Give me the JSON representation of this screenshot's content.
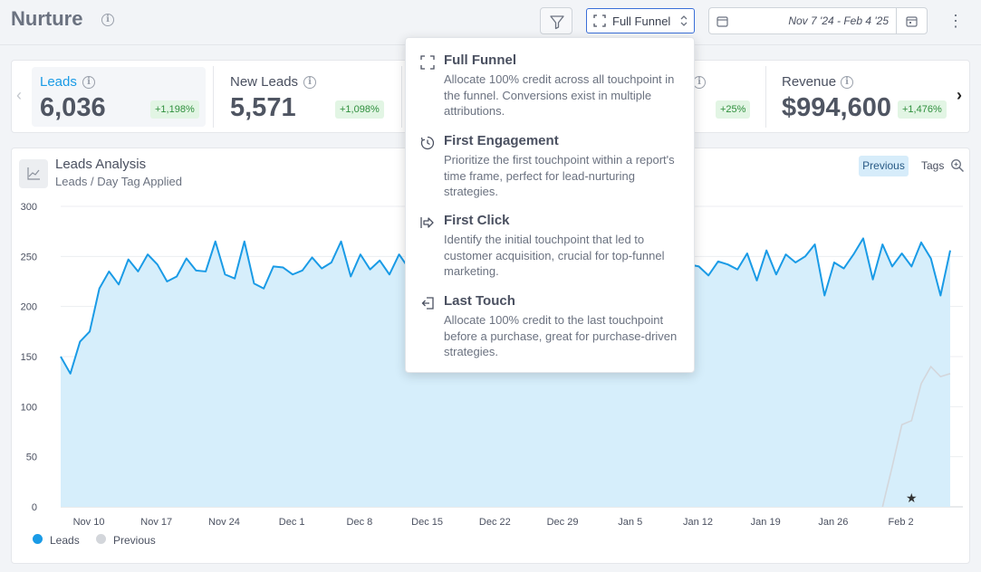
{
  "header": {
    "title": "Nurture",
    "funnel_label": "Full Funnel",
    "date_range": "Nov 7 '24 - Feb 4 '25"
  },
  "kpis": [
    {
      "name": "Leads",
      "value": "6,036",
      "change": "+1,198%",
      "active": true
    },
    {
      "name": "New Leads",
      "value": "5,571",
      "change": "+1,098%",
      "active": false
    },
    {
      "name": "",
      "value": "",
      "change": "+25%",
      "active": false
    },
    {
      "name": "Revenue",
      "value": "$994,600",
      "change": "+1,476%",
      "active": false
    }
  ],
  "chart_panel": {
    "title": "Leads Analysis",
    "subtitle": "Leads / Day Tag Applied",
    "previous_button": "Previous",
    "tags_button": "Tags"
  },
  "dropdown": {
    "options": [
      {
        "icon": "full-funnel-icon",
        "title": "Full Funnel",
        "description": "Allocate 100% credit across all touchpoint in the funnel. Conversions exist in multiple attributions."
      },
      {
        "icon": "first-engagement-icon",
        "title": "First Engagement",
        "description": "Prioritize the first touchpoint within a report's time frame, perfect for lead-nurturing strategies."
      },
      {
        "icon": "first-click-icon",
        "title": "First Click",
        "description": "Identify the initial touchpoint that led to customer acquisition, crucial for top-funnel marketing."
      },
      {
        "icon": "last-touch-icon",
        "title": "Last Touch",
        "description": "Allocate 100% credit to the last touchpoint before a purchase, great for purchase-driven strategies."
      }
    ]
  },
  "colors": {
    "leads_line": "#1a9be6",
    "leads_fill": "#d6eefb",
    "previous_line": "#d3d6db",
    "accent": "#3a6fd8"
  },
  "chart_data": {
    "type": "area",
    "ylim": [
      0,
      300
    ],
    "yticks": [
      "0",
      "50",
      "100",
      "150",
      "200",
      "250",
      "300"
    ],
    "xticks": [
      "Nov 10",
      "Nov 17",
      "Nov 24",
      "Dec 1",
      "Dec 8",
      "Dec 15",
      "Dec 22",
      "Dec 29",
      "Jan 5",
      "Jan 12",
      "Jan 19",
      "Jan 26",
      "Feb 2"
    ],
    "x_start": "Nov 7",
    "grid": true,
    "legend_position": "bottom-left",
    "series": [
      {
        "name": "Leads",
        "values": [
          150,
          133,
          165,
          175,
          218,
          235,
          222,
          247,
          235,
          252,
          242,
          225,
          230,
          248,
          236,
          235,
          265,
          232,
          228,
          265,
          223,
          218,
          240,
          239,
          232,
          236,
          249,
          238,
          244,
          265,
          230,
          252,
          237,
          246,
          232,
          252,
          238,
          240,
          245,
          250,
          240,
          235,
          245,
          238,
          240,
          245,
          240,
          242,
          238,
          245,
          242,
          238,
          244,
          240,
          242,
          238,
          240,
          245,
          242,
          240,
          238,
          242,
          240,
          245,
          240,
          242,
          240,
          231,
          245,
          242,
          237,
          253,
          226,
          256,
          232,
          252,
          244,
          250,
          262,
          211,
          244,
          238,
          252,
          268,
          227,
          262,
          240,
          253,
          240,
          264,
          248,
          211,
          256
        ]
      },
      {
        "name": "Previous",
        "values": [
          0,
          0,
          0,
          0,
          0,
          0,
          0,
          0,
          0,
          0,
          0,
          0,
          0,
          0,
          0,
          0,
          0,
          0,
          0,
          0,
          0,
          0,
          0,
          0,
          0,
          0,
          0,
          0,
          0,
          0,
          0,
          0,
          0,
          0,
          0,
          0,
          0,
          0,
          0,
          0,
          0,
          0,
          0,
          0,
          0,
          0,
          0,
          0,
          0,
          0,
          0,
          0,
          0,
          0,
          0,
          0,
          0,
          0,
          0,
          0,
          0,
          0,
          0,
          0,
          0,
          0,
          0,
          0,
          0,
          0,
          0,
          0,
          0,
          0,
          0,
          0,
          0,
          0,
          0,
          0,
          0,
          0,
          0,
          0,
          0,
          0,
          40,
          82,
          86,
          123,
          140,
          130,
          133,
          158
        ]
      }
    ],
    "annotation": "★"
  }
}
